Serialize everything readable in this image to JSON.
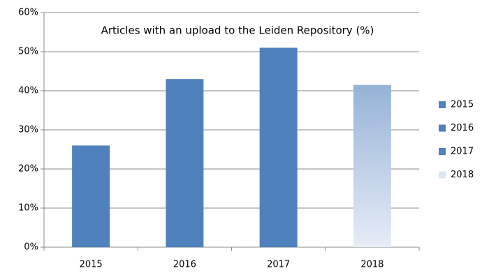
{
  "chart_data": {
    "type": "bar",
    "title": "Articles with an upload to the Leiden Repository (%)",
    "categories": [
      "2015",
      "2016",
      "2017",
      "2018"
    ],
    "values": [
      26,
      43,
      51,
      41.5
    ],
    "colors": [
      "#4f81bd",
      "#4f81bd",
      "#4f81bd",
      "#95b3d7"
    ],
    "ylim": [
      0,
      60
    ],
    "yticks": [
      {
        "value": 0,
        "label": "0%"
      },
      {
        "value": 10,
        "label": "10%"
      },
      {
        "value": 20,
        "label": "20%"
      },
      {
        "value": 30,
        "label": "30%"
      },
      {
        "value": 40,
        "label": "40%"
      },
      {
        "value": 50,
        "label": "50%"
      },
      {
        "value": 60,
        "label": "60%"
      }
    ],
    "grid": true,
    "legend": "right"
  }
}
